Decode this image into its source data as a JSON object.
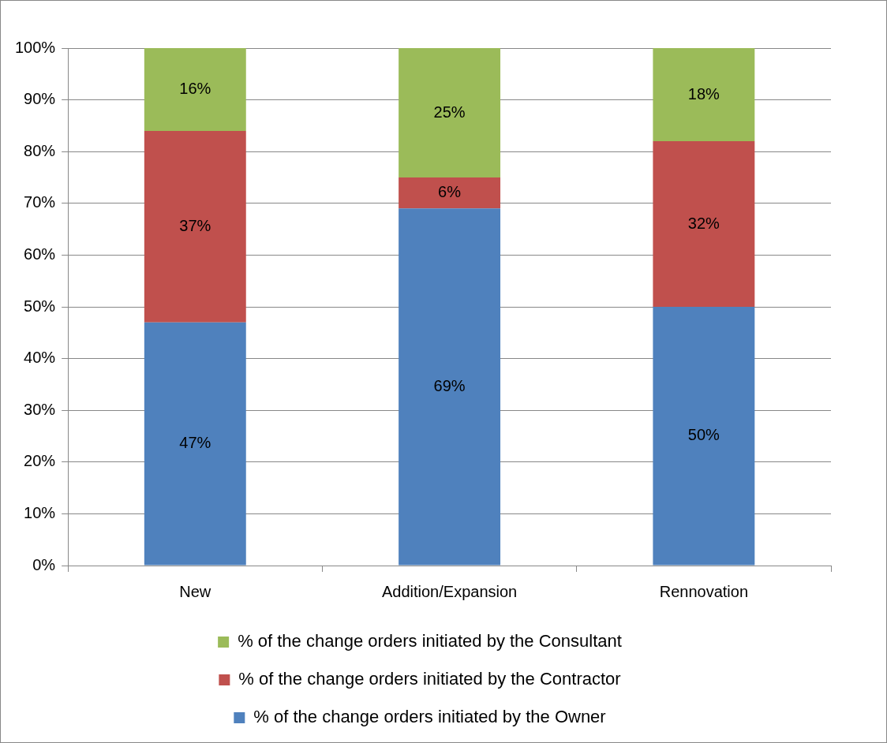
{
  "chart_data": {
    "type": "bar",
    "stacked": true,
    "categories": [
      "New",
      "Addition/Expansion",
      "Rennovation"
    ],
    "series": [
      {
        "name": "% of the change orders initiated by the Owner",
        "color": "#4f81bd",
        "values": [
          47,
          69,
          50
        ],
        "value_labels": [
          "47%",
          "69%",
          "50%"
        ]
      },
      {
        "name": "% of the change orders initiated by the Contractor",
        "color": "#c0504d",
        "values": [
          37,
          6,
          32
        ],
        "value_labels": [
          "37%",
          "6%",
          "32%"
        ]
      },
      {
        "name": "% of the change orders initiated by the Consultant",
        "color": "#9bbb59",
        "values": [
          16,
          25,
          18
        ],
        "value_labels": [
          "16%",
          "25%",
          "18%"
        ]
      }
    ],
    "ylim": [
      0,
      100
    ],
    "yticks": [
      {
        "value": 0,
        "label": "0%"
      },
      {
        "value": 10,
        "label": "10%"
      },
      {
        "value": 20,
        "label": "20%"
      },
      {
        "value": 30,
        "label": "30%"
      },
      {
        "value": 40,
        "label": "40%"
      },
      {
        "value": 50,
        "label": "50%"
      },
      {
        "value": 60,
        "label": "60%"
      },
      {
        "value": 70,
        "label": "70%"
      },
      {
        "value": 80,
        "label": "80%"
      },
      {
        "value": 90,
        "label": "90%"
      },
      {
        "value": 100,
        "label": "100%"
      }
    ],
    "grid": "y",
    "legend": "bottom"
  }
}
